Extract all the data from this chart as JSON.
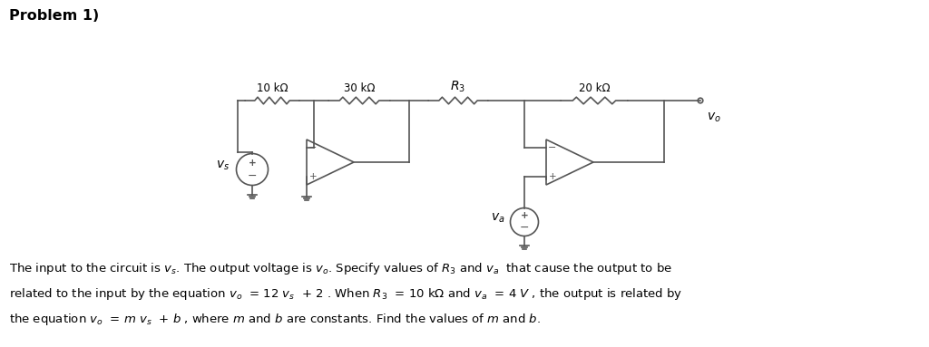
{
  "title": "Problem 1)",
  "bg_color": "#ffffff",
  "line_color": "#555555",
  "text_color": "#000000",
  "lw": 1.2,
  "fig_w": 10.24,
  "fig_h": 3.83,
  "line1": "The input to the circuit is $v_s$. The output voltage is $v_o$. Specify values of $R_3$ and $v_a$  that cause the output to be",
  "line2": "related to the input by the equation $v_o$  = 12 $v_s$  + 2 . When $R_3$  = 10 kΩ and $v_a$  = 4 $V$ , the output is related by",
  "line3": "the equation $v_o$  = $m$ $v_s$  + $b$ , where $m$ and $b$ are constants. Find the values of $m$ and $b$."
}
